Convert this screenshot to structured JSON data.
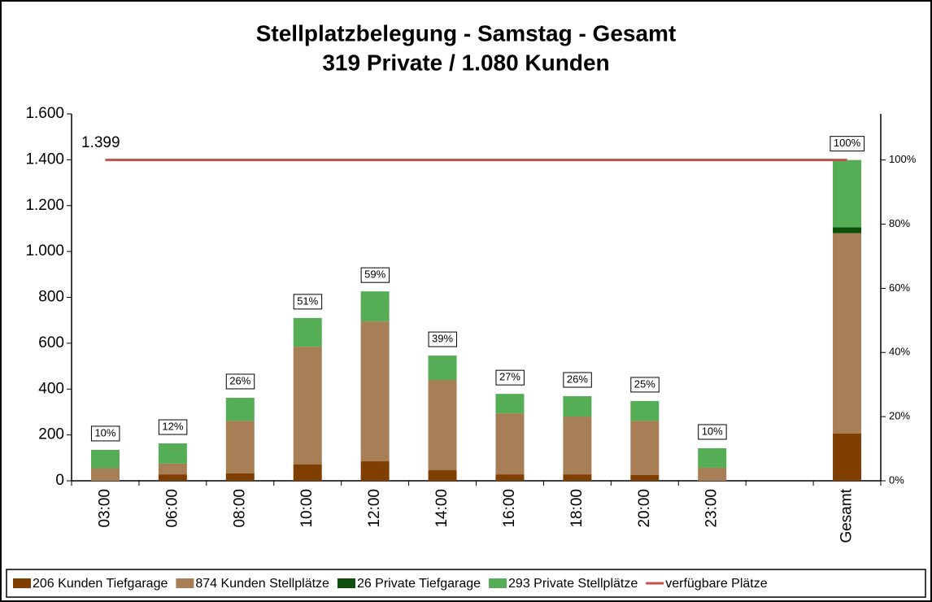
{
  "chart_data": {
    "type": "bar",
    "title": "Stellplatzbelegung - Samstag - Gesamt",
    "subtitle": "319 Private / 1.080 Kunden",
    "annotation": "1.399",
    "stacked": true,
    "categories": [
      "03:00",
      "06:00",
      "08:00",
      "10:00",
      "12:00",
      "14:00",
      "16:00",
      "18:00",
      "20:00",
      "23:00",
      null,
      "Gesamt"
    ],
    "series": [
      {
        "name": "206 Kunden Tiefgarage",
        "type": "bar",
        "color": "#7f3f00",
        "values": [
          0,
          28,
          32,
          71,
          85,
          46,
          28,
          28,
          25,
          0,
          null,
          206
        ]
      },
      {
        "name": "874 Kunden Stellplätze",
        "type": "bar",
        "color": "#a77e56",
        "values": [
          55,
          47,
          230,
          514,
          610,
          394,
          266,
          252,
          237,
          57,
          null,
          874
        ]
      },
      {
        "name": "26 Private Tiefgarage",
        "type": "bar",
        "color": "#0b4f0b",
        "values": [
          0,
          0,
          0,
          0,
          0,
          0,
          0,
          0,
          0,
          0,
          null,
          26
        ]
      },
      {
        "name": "293 Private Stellplätze",
        "type": "bar",
        "color": "#55ad55",
        "values": [
          80,
          88,
          100,
          125,
          131,
          106,
          85,
          89,
          86,
          85,
          null,
          293
        ]
      },
      {
        "name": "verfügbare Plätze",
        "type": "line",
        "color": "#c0504d",
        "values": [
          1399,
          1399,
          1399,
          1399,
          1399,
          1399,
          1399,
          1399,
          1399,
          1399,
          1399,
          1399
        ]
      }
    ],
    "percent_labels": {
      "values": [
        10,
        12,
        26,
        51,
        59,
        39,
        27,
        26,
        25,
        10,
        null,
        100
      ],
      "value_labels": [
        "10%",
        "12%",
        "26%",
        "51%",
        "59%",
        "39%",
        "27%",
        "26%",
        "25%",
        "10%",
        null,
        "100%"
      ]
    },
    "ylim": [
      0,
      1600
    ],
    "yticks": [
      0,
      200,
      400,
      600,
      800,
      {
        "value": 1000,
        "label": "1.000"
      },
      {
        "value": 1200,
        "label": "1.200"
      },
      {
        "value": 1400,
        "label": "1.400"
      },
      {
        "value": 1600,
        "label": "1.600"
      }
    ],
    "y2lim": [
      0,
      114.37
    ],
    "y2ticks": [
      {
        "value": 0,
        "label": "0%"
      },
      {
        "value": 20,
        "label": "20%"
      },
      {
        "value": 40,
        "label": "40%"
      },
      {
        "value": 60,
        "label": "60%"
      },
      {
        "value": 80,
        "label": "80%"
      },
      {
        "value": 100,
        "label": "100%"
      }
    ],
    "grid": false,
    "legend": "bottom"
  }
}
